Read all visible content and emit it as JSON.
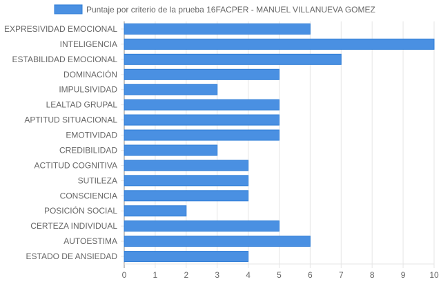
{
  "chart_data": {
    "type": "bar",
    "orientation": "horizontal",
    "categories": [
      "EXPRESIVIDAD EMOCIONAL",
      "INTELIGENCIA",
      "ESTABILIDAD EMOCIONAL",
      "DOMINACIÓN",
      "IMPULSIVIDAD",
      "LEALTAD GRUPAL",
      "APTITUD SITUACIONAL",
      "EMOTIVIDAD",
      "CREDIBILIDAD",
      "ACTITUD COGNITIVA",
      "SUTILEZA",
      "CONSCIENCIA",
      "POSICIÓN SOCIAL",
      "CERTEZA INDIVIDUAL",
      "AUTOESTIMA",
      "ESTADO DE ANSIEDAD"
    ],
    "series": [
      {
        "name": "Puntaje por criterio de la prueba 16FACPER - MANUEL VILLANUEVA GOMEZ",
        "values": [
          6,
          10,
          7,
          5,
          3,
          5,
          5,
          5,
          3,
          4,
          4,
          4,
          2,
          5,
          6,
          4
        ]
      }
    ],
    "xlim": [
      0,
      10
    ],
    "xticks": [
      "0",
      "1",
      "2",
      "3",
      "4",
      "5",
      "6",
      "7",
      "8",
      "9",
      "10"
    ],
    "grid": true,
    "legend_position": "top",
    "colors": {
      "bar_fill": "#4a90e2",
      "bar_border": "#2f7dd6",
      "grid": "#e5e5e5",
      "axis": "#888888",
      "text": "#666666"
    }
  }
}
